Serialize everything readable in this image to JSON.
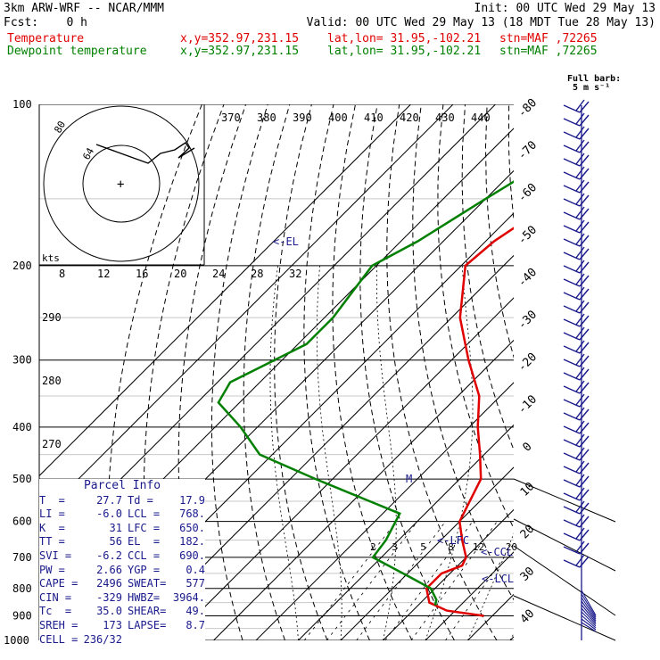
{
  "header": {
    "title": "3km ARW-WRF -- NCAR/MMM",
    "init": "Init: 00 UTC Wed 29 May 13",
    "fcst": "Fcst:    0 h",
    "valid": "Valid: 00 UTC Wed 29 May 13 (18 MDT Tue 28 May 13)",
    "temp_label": "Temperature",
    "dew_label": "Dewpoint temperature",
    "xy": "x,y=352.97,231.15",
    "latlon": "lat,lon= 31.95,-102.21",
    "stn": "stn=MAF ,72265",
    "barb_legend": "Full barb:",
    "barb_unit": "5 m s⁻¹"
  },
  "colors": {
    "temperature": "#e00000",
    "dewpoint": "#008000",
    "annotation": "#1a1a8c"
  },
  "parcel_info": {
    "title": "Parcel Info",
    "rows": [
      [
        "T  =",
        "27.7",
        "Td =",
        "17.9"
      ],
      [
        "LI =",
        "-6.0",
        "LCL =",
        "768."
      ],
      [
        "K  =",
        "31",
        "LFC =",
        "650."
      ],
      [
        "TT =",
        "56",
        "EL  =",
        "182."
      ],
      [
        "SVI =",
        "-6.2",
        "CCL =",
        "690."
      ],
      [
        "PW =",
        "2.66",
        "YGP =",
        "0.4"
      ],
      [
        "CAPE =",
        "2496",
        "SWEAT=",
        "577"
      ],
      [
        "CIN =",
        "-329",
        "HWBZ=",
        "3964."
      ],
      [
        "Tc  =",
        "35.0",
        "SHEAR=",
        "49."
      ],
      [
        "SREH =",
        "173",
        "LAPSE=",
        "8.7"
      ],
      [
        "CELL =",
        "236/32",
        "",
        ""
      ]
    ]
  },
  "chart_data": {
    "type": "line",
    "title": "",
    "x_axis": "temperature (°C), skewed",
    "y_axis": "pressure (hPa), log scale",
    "pressure_ticks": [
      100,
      200,
      300,
      400,
      500,
      600,
      700,
      800,
      900,
      1000
    ],
    "isotherm_labels": [
      -80,
      -70,
      -60,
      -50,
      -40,
      -30,
      -20,
      -10,
      0,
      10,
      20,
      30,
      40
    ],
    "theta_labels": [
      370,
      380,
      390,
      400,
      410,
      420,
      430,
      440
    ],
    "theta_labels_low": [
      290,
      280,
      270
    ],
    "mixing_ratio_labels": [
      2,
      3,
      5,
      8,
      12,
      20
    ],
    "hodograph": {
      "speed_unit": "kts",
      "ring_labels": [
        8,
        12,
        16,
        20,
        24,
        28,
        32
      ],
      "ring_tags": [
        80,
        64
      ]
    },
    "series": [
      {
        "name": "Temperature",
        "color": "#e00000",
        "points": [
          [
            100,
            -58
          ],
          [
            130,
            -53
          ],
          [
            150,
            -53
          ],
          [
            180,
            -58
          ],
          [
            200,
            -59
          ],
          [
            250,
            -48
          ],
          [
            300,
            -36
          ],
          [
            350,
            -25
          ],
          [
            400,
            -18
          ],
          [
            450,
            -11
          ],
          [
            500,
            -5
          ],
          [
            600,
            0
          ],
          [
            650,
            5
          ],
          [
            700,
            10
          ],
          [
            725,
            11
          ],
          [
            750,
            8
          ],
          [
            800,
            8
          ],
          [
            850,
            12
          ],
          [
            880,
            18
          ],
          [
            900,
            28
          ]
        ]
      },
      {
        "name": "Dewpoint temperature",
        "color": "#008000",
        "points": [
          [
            100,
            -58
          ],
          [
            130,
            -65
          ],
          [
            150,
            -70
          ],
          [
            180,
            -76
          ],
          [
            200,
            -81
          ],
          [
            250,
            -78
          ],
          [
            280,
            -78
          ],
          [
            330,
            -87
          ],
          [
            360,
            -85
          ],
          [
            400,
            -74
          ],
          [
            450,
            -63
          ],
          [
            500,
            -44
          ],
          [
            550,
            -26
          ],
          [
            580,
            -16
          ],
          [
            650,
            -13
          ],
          [
            700,
            -12
          ],
          [
            760,
            1
          ],
          [
            800,
            9
          ],
          [
            840,
            13
          ],
          [
            860,
            14
          ]
        ]
      }
    ],
    "annotations": [
      "<-EL",
      "<-LFC",
      "<-CCL",
      "<-LCL",
      "M"
    ]
  }
}
